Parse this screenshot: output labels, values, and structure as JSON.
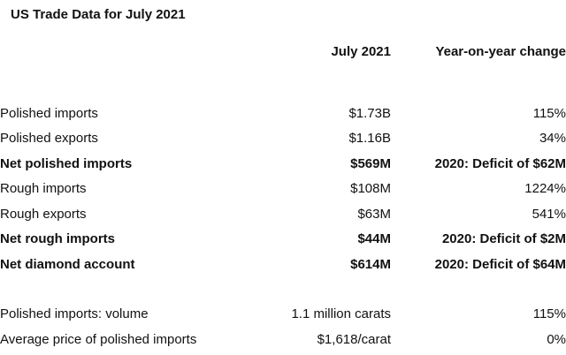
{
  "title": "US Trade Data for July 2021",
  "columns": {
    "period": "July 2021",
    "change": "Year-on-year change"
  },
  "rows": [
    {
      "label": "Polished imports",
      "value": "$1.73B",
      "change": "115%"
    },
    {
      "label": "Polished exports",
      "value": "$1.16B",
      "change": "34%"
    },
    {
      "label": "Net polished imports",
      "value": "$569M",
      "change": "2020: Deficit of $62M"
    },
    {
      "label": "Rough imports",
      "value": "$108M",
      "change": "1224%"
    },
    {
      "label": "Rough exports",
      "value": "$63M",
      "change": "541%"
    },
    {
      "label": "Net rough imports",
      "value": "$44M",
      "change": "2020: Deficit of $2M"
    },
    {
      "label": "Net diamond account",
      "value": "$614M",
      "change": "2020: Deficit of $64M"
    },
    {
      "label": "Polished imports: volume",
      "value": "1.1 million carats",
      "change": "115%"
    },
    {
      "label": "Average price of polished imports",
      "value": "$1,618/carat",
      "change": "0%"
    }
  ]
}
